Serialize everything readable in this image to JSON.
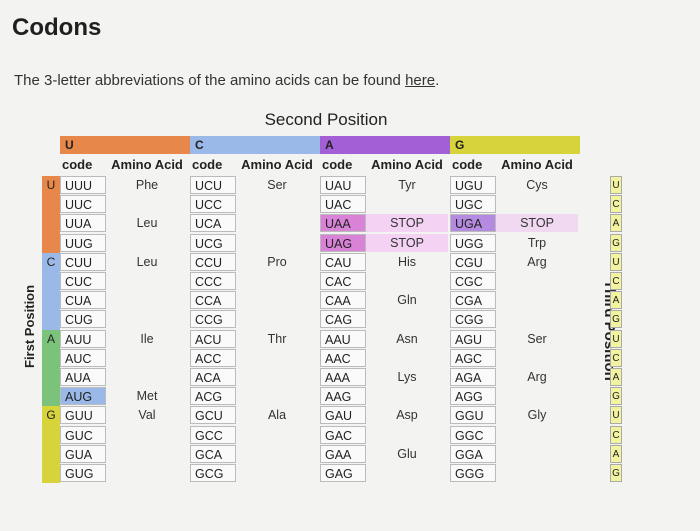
{
  "title": "Codons",
  "intro": {
    "text": "The 3-letter abbreviations of the amino acids can be found ",
    "link": "here",
    "after": "."
  },
  "table": {
    "second_position_label": "Second Position",
    "first_position_label": "First Position",
    "third_position_label": "Third Position",
    "column_letters": [
      "U",
      "C",
      "A",
      "G"
    ],
    "column_colors": [
      "#e8874a",
      "#9ab8e8",
      "#a35fd6",
      "#d7d33a"
    ],
    "subheaders": [
      "code",
      "Amino Acid",
      "code",
      "Amino Acid",
      "code",
      "Amino Acid",
      "code",
      "Amino Acid"
    ],
    "row_letters": [
      "U",
      "C",
      "A",
      "G"
    ],
    "row_colors": [
      "#e8874a",
      "#9ab8e8",
      "#7bc27b",
      "#d7d33a"
    ],
    "third_letters": [
      "U",
      "C",
      "A",
      "G",
      "U",
      "C",
      "A",
      "G",
      "U",
      "C",
      "A",
      "G",
      "U",
      "C",
      "A",
      "G"
    ],
    "codons": [
      [
        "UUU",
        "UCU",
        "UAU",
        "UGU"
      ],
      [
        "UUC",
        "UCC",
        "UAC",
        "UGC"
      ],
      [
        "UUA",
        "UCA",
        "UAA",
        "UGA"
      ],
      [
        "UUG",
        "UCG",
        "UAG",
        "UGG"
      ],
      [
        "CUU",
        "CCU",
        "CAU",
        "CGU"
      ],
      [
        "CUC",
        "CCC",
        "CAC",
        "CGC"
      ],
      [
        "CUA",
        "CCA",
        "CAA",
        "CGA"
      ],
      [
        "CUG",
        "CCG",
        "CAG",
        "CGG"
      ],
      [
        "AUU",
        "ACU",
        "AAU",
        "AGU"
      ],
      [
        "AUC",
        "ACC",
        "AAC",
        "AGC"
      ],
      [
        "AUA",
        "ACA",
        "AAA",
        "AGA"
      ],
      [
        "AUG",
        "ACG",
        "AAG",
        "AGG"
      ],
      [
        "GUU",
        "GCU",
        "GAU",
        "GGU"
      ],
      [
        "GUC",
        "GCC",
        "GAC",
        "GGC"
      ],
      [
        "GUA",
        "GCA",
        "GAA",
        "GGA"
      ],
      [
        "GUG",
        "GCG",
        "GAG",
        "GGG"
      ]
    ],
    "amino_acids": [
      [
        "Phe",
        "Ser",
        "Tyr",
        "Cys"
      ],
      [
        "",
        "",
        "",
        ""
      ],
      [
        "Leu",
        "",
        "STOP",
        "STOP"
      ],
      [
        "",
        "",
        "STOP",
        "Trp"
      ],
      [
        "Leu",
        "Pro",
        "His",
        "Arg"
      ],
      [
        "",
        "",
        "",
        ""
      ],
      [
        "",
        "",
        "Gln",
        ""
      ],
      [
        "",
        "",
        "",
        ""
      ],
      [
        "Ile",
        "Thr",
        "Asn",
        "Ser"
      ],
      [
        "",
        "",
        "",
        ""
      ],
      [
        "",
        "",
        "Lys",
        "Arg"
      ],
      [
        "Met",
        "",
        "",
        ""
      ],
      [
        "Val",
        "Ala",
        "Asp",
        "Gly"
      ],
      [
        "",
        "",
        "",
        ""
      ],
      [
        "",
        "",
        "Glu",
        ""
      ],
      [
        "",
        "",
        "",
        ""
      ]
    ],
    "highlights": {
      "pink": [
        "UAA",
        "UAG"
      ],
      "purple": [
        "UGA"
      ],
      "orange_start": [
        "AUG"
      ]
    },
    "highlight_colors": {
      "pink": "#d883d8",
      "purple": "#b48be0",
      "start": "#9ab8e8"
    }
  }
}
